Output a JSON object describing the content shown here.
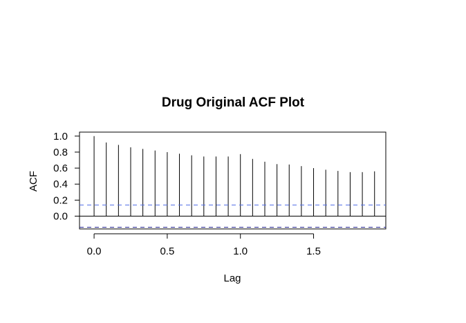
{
  "chart_data": {
    "type": "bar",
    "title": "Drug Original ACF Plot",
    "xlabel": "Lag",
    "ylabel": "ACF",
    "x_ticks": [
      "0.0",
      "0.5",
      "1.0",
      "1.5"
    ],
    "y_ticks": [
      "0.0",
      "0.2",
      "0.4",
      "0.6",
      "0.8",
      "1.0"
    ],
    "lags": [
      0,
      0.0833,
      0.1667,
      0.25,
      0.3333,
      0.4167,
      0.5,
      0.5833,
      0.6667,
      0.75,
      0.8333,
      0.9167,
      1.0,
      1.0833,
      1.1667,
      1.25,
      1.3333,
      1.4167,
      1.5,
      1.5833,
      1.6667,
      1.75,
      1.8333,
      1.9167
    ],
    "acf": [
      1.0,
      0.92,
      0.89,
      0.86,
      0.84,
      0.82,
      0.8,
      0.78,
      0.76,
      0.745,
      0.745,
      0.745,
      0.775,
      0.715,
      0.68,
      0.65,
      0.645,
      0.625,
      0.6,
      0.58,
      0.565,
      0.55,
      0.55,
      0.56
    ],
    "ci_upper": 0.139,
    "ci_lower": -0.139,
    "xlim": [
      -0.0996,
      1.9936
    ],
    "ylim": [
      -0.16,
      1.05
    ],
    "grid": false,
    "colors": {
      "bars": "#000000",
      "zero_line": "#000000",
      "ci_upper": "#4f6be8",
      "ci_lower": "#1a1a8c"
    }
  }
}
